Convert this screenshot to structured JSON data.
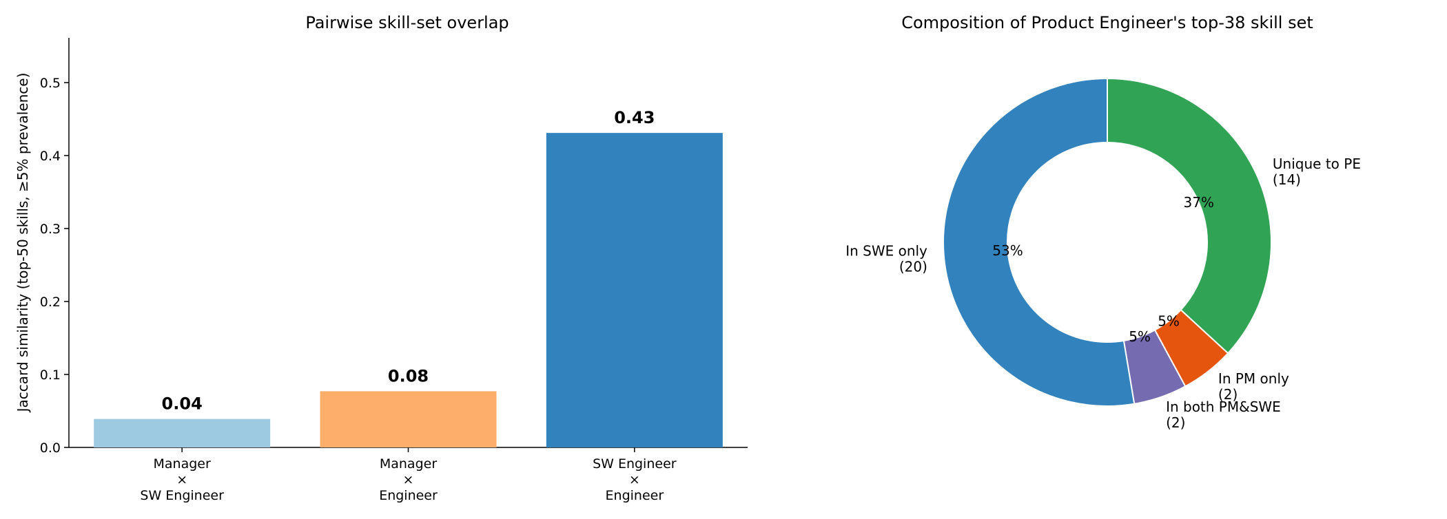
{
  "colors": {
    "text": "#000000",
    "axis": "#000000",
    "pie_edge": "#ffffff"
  },
  "chart_data": [
    {
      "type": "bar",
      "title": "Pairwise skill-set overlap",
      "xlabel": "",
      "ylabel": "Jaccard similarity (top-50 skills, ≥5% prevalence)",
      "ylim": [
        0,
        0.56
      ],
      "yticks": [
        0.0,
        0.1,
        0.2,
        0.3,
        0.4,
        0.5
      ],
      "ytick_labels": [
        "0.0",
        "0.1",
        "0.2",
        "0.3",
        "0.4",
        "0.5"
      ],
      "grid": false,
      "categories": [
        [
          "Manager",
          "×",
          "SW Engineer"
        ],
        [
          "Manager",
          "×",
          "Engineer"
        ],
        [
          "SW Engineer",
          "×",
          "Engineer"
        ]
      ],
      "values": [
        0.039,
        0.077,
        0.431
      ],
      "value_labels": [
        "0.04",
        "0.08",
        "0.43"
      ],
      "colors": [
        "#9ecae1",
        "#fdae6b",
        "#3182bd"
      ]
    },
    {
      "type": "pie",
      "donut": true,
      "title": "Composition of Product Engineer's top-38 skill set",
      "slices": [
        {
          "label": [
            "Unique to PE",
            "(14)"
          ],
          "value": 14,
          "pct_label": "37%",
          "color": "#31a354"
        },
        {
          "label": [
            "In PM only",
            "(2)"
          ],
          "value": 2,
          "pct_label": "5%",
          "color": "#e6550d"
        },
        {
          "label": [
            "In both PM&SWE",
            "(2)"
          ],
          "value": 2,
          "pct_label": "5%",
          "color": "#756bb1"
        },
        {
          "label": [
            "In SWE only",
            "(20)"
          ],
          "value": 20,
          "pct_label": "53%",
          "color": "#3182bd"
        }
      ],
      "start_angle": "top",
      "direction": "clockwise"
    }
  ]
}
